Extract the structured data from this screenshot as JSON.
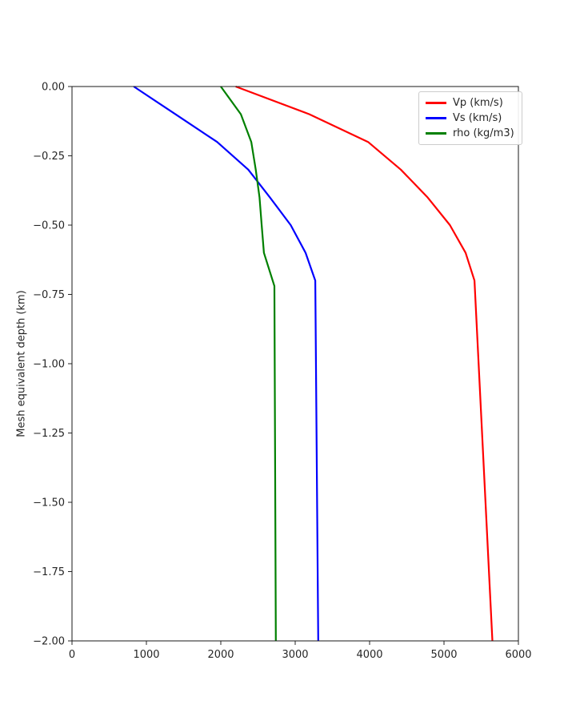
{
  "chart_data": {
    "type": "line",
    "title": "",
    "xlabel": "",
    "ylabel": "Mesh equivalent depth (km)",
    "xlim": [
      0,
      6000
    ],
    "ylim": [
      -2.0,
      0.0
    ],
    "grid": false,
    "legend_position": "upper right",
    "x_ticks": {
      "values": [
        0,
        1000,
        2000,
        3000,
        4000,
        5000,
        6000
      ],
      "labels": [
        "0",
        "1000",
        "2000",
        "3000",
        "4000",
        "5000",
        "6000"
      ]
    },
    "y_ticks": {
      "values": [
        0.0,
        -0.25,
        -0.5,
        -0.75,
        -1.0,
        -1.25,
        -1.5,
        -1.75,
        -2.0
      ],
      "labels": [
        "0.00",
        "−0.25",
        "−0.50",
        "−0.75",
        "−1.00",
        "−1.25",
        "−1.50",
        "−1.75",
        "−2.00"
      ]
    },
    "series": [
      {
        "name": "Vp (km/s)",
        "color": "#ff0000",
        "depth": [
          0.0,
          -0.1,
          -0.2,
          -0.3,
          -0.4,
          -0.5,
          -0.6,
          -0.7,
          -2.0
        ],
        "value": [
          2200,
          3190,
          3980,
          4420,
          4780,
          5080,
          5290,
          5410,
          5650
        ]
      },
      {
        "name": "Vs (km/s)",
        "color": "#0000ff",
        "depth": [
          0.0,
          -0.1,
          -0.2,
          -0.3,
          -0.4,
          -0.5,
          -0.6,
          -0.7,
          -2.0
        ],
        "value": [
          830,
          1390,
          1950,
          2370,
          2660,
          2940,
          3140,
          3270,
          3310
        ]
      },
      {
        "name": "rho (kg/m3)",
        "color": "#008000",
        "depth": [
          0.0,
          -0.1,
          -0.2,
          -0.3,
          -0.4,
          -0.5,
          -0.6,
          -0.72,
          -2.0
        ],
        "value": [
          2000,
          2270,
          2410,
          2470,
          2520,
          2550,
          2580,
          2720,
          2740
        ]
      }
    ]
  }
}
